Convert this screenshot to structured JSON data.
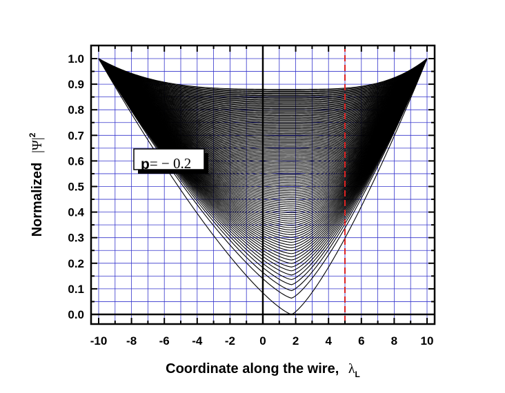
{
  "chart_data": {
    "type": "line",
    "xlabel": "Coordinate along the wire,",
    "xlabel_symbol": "λ",
    "xlabel_sub": "L",
    "ylabel": "Normalized",
    "ylabel_symbol": "|Ψ|",
    "ylabel_sup": "2",
    "xlim": [
      -10,
      10
    ],
    "ylim": [
      0.0,
      1.0
    ],
    "x_ticks": [
      -10,
      -8,
      -6,
      -4,
      -2,
      0,
      2,
      4,
      6,
      8,
      10
    ],
    "x_tick_labels": [
      "-10",
      "-8",
      "-6",
      "-4",
      "-2",
      "0",
      "2",
      "4",
      "6",
      "8",
      "10"
    ],
    "y_ticks": [
      0.0,
      0.1,
      0.2,
      0.3,
      0.4,
      0.5,
      0.6,
      0.7,
      0.8,
      0.9,
      1.0
    ],
    "y_tick_labels": [
      "0.0",
      "0.1",
      "0.2",
      "0.3",
      "0.4",
      "0.5",
      "0.6",
      "0.7",
      "0.8",
      "0.9",
      "1.0"
    ],
    "grid": true,
    "grid_color": "#3333cc",
    "curve_color": "#000000",
    "curve_family": {
      "count": 120,
      "x_range": [
        -10,
        10
      ],
      "endpoint_values": [
        1.0,
        1.0
      ],
      "minimum_x": 1.75,
      "deepest_minimum": 0.0,
      "shallowest_minimum": 0.88
    },
    "reference_lines": [
      {
        "axis": "x",
        "value": 0,
        "color": "#000000",
        "style": "solid"
      },
      {
        "axis": "x",
        "value": 5,
        "color": "#dd2222",
        "style": "dashed"
      }
    ],
    "annotation": {
      "bold": "p",
      "text": "= − 0.2"
    }
  }
}
